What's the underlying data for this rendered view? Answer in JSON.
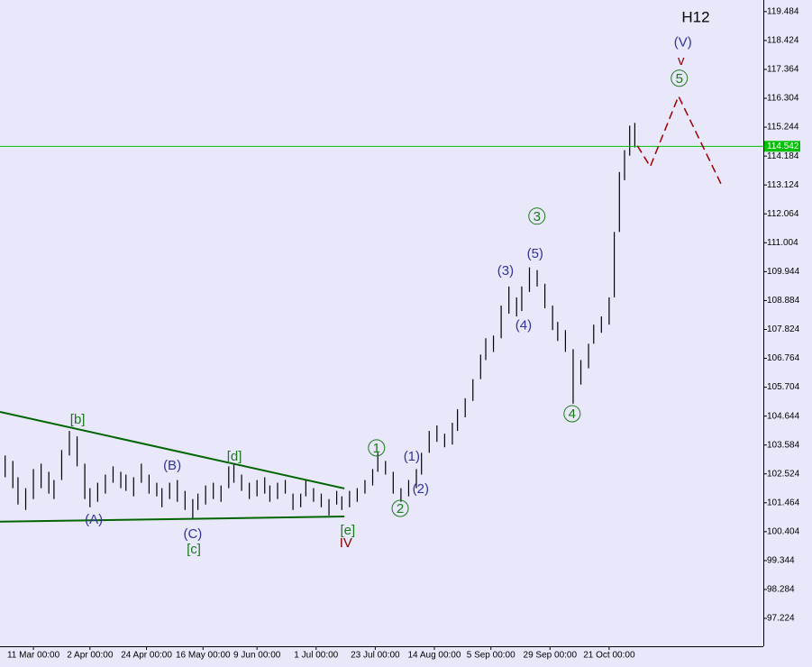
{
  "chart_data": {
    "type": "hlbar",
    "title": "H12",
    "xlim": [
      -13,
      284
    ],
    "ylim": [
      96.2,
      119.91
    ],
    "xticks": [
      {
        "value": 0,
        "label": "11 Mar 00:00"
      },
      {
        "value": 22,
        "label": "2 Apr 00:00"
      },
      {
        "value": 44,
        "label": "24 Apr 00:00"
      },
      {
        "value": 66,
        "label": "16 May 00:00"
      },
      {
        "value": 87,
        "label": "9 Jun 00:00"
      },
      {
        "value": 110,
        "label": "1 Jul 00:00"
      },
      {
        "value": 133,
        "label": "23 Jul 00:00"
      },
      {
        "value": 156,
        "label": "14 Aug 00:00"
      },
      {
        "value": 178,
        "label": "5 Sep 00:00"
      },
      {
        "value": 201,
        "label": "29 Sep 00:00"
      },
      {
        "value": 224,
        "label": "21 Oct 00:00"
      }
    ],
    "yticks": [
      97.224,
      98.284,
      99.344,
      100.404,
      101.464,
      102.524,
      103.584,
      104.644,
      105.704,
      106.764,
      107.824,
      108.884,
      109.944,
      111.004,
      112.064,
      113.124,
      114.184,
      115.244,
      116.304,
      117.364,
      118.424,
      119.484
    ],
    "bars": {
      "color": "#000000",
      "x": [
        -11,
        -8,
        -6,
        -3,
        0,
        3,
        6,
        8,
        11,
        14,
        17,
        20,
        22,
        25,
        28,
        31,
        34,
        36,
        39,
        42,
        45,
        48,
        50,
        53,
        56,
        59,
        62,
        64,
        67,
        70,
        73,
        76,
        78,
        81,
        84,
        87,
        90,
        92,
        95,
        98,
        101,
        104,
        106,
        109,
        112,
        115,
        118,
        120,
        123,
        126,
        129,
        132,
        134,
        137,
        140,
        143,
        146,
        149,
        151,
        154,
        157,
        160,
        163,
        165,
        168,
        171,
        174,
        176,
        179,
        182,
        185,
        188,
        190,
        193,
        196,
        199,
        202,
        204,
        207,
        210,
        213,
        216,
        218,
        221,
        224,
        226,
        228,
        230,
        232,
        234
      ],
      "low": [
        102.4,
        102.0,
        101.4,
        101.2,
        101.6,
        102.0,
        101.8,
        101.6,
        102.3,
        103.2,
        102.8,
        101.6,
        101.3,
        101.5,
        101.8,
        102.2,
        102.0,
        101.9,
        101.7,
        102.2,
        101.8,
        101.7,
        101.3,
        101.6,
        101.5,
        101.2,
        100.9,
        101.2,
        101.4,
        101.6,
        101.5,
        102.0,
        102.2,
        101.9,
        101.6,
        101.7,
        101.8,
        101.5,
        101.6,
        101.8,
        101.2,
        101.3,
        101.7,
        101.5,
        101.3,
        101.0,
        101.4,
        101.2,
        101.3,
        101.5,
        101.8,
        102.1,
        102.6,
        102.5,
        101.8,
        101.5,
        101.7,
        102.0,
        102.5,
        103.3,
        103.7,
        103.5,
        103.6,
        104.1,
        104.6,
        105.2,
        106.0,
        106.7,
        107.0,
        107.5,
        108.4,
        108.3,
        108.5,
        109.2,
        109.4,
        108.6,
        107.8,
        107.4,
        107.0,
        105.1,
        105.8,
        106.4,
        107.3,
        107.7,
        108.0,
        109.0,
        111.4,
        113.3,
        114.2,
        114.5
      ],
      "high": [
        103.2,
        103.0,
        102.4,
        102.0,
        102.7,
        102.9,
        102.6,
        102.3,
        103.4,
        104.1,
        103.9,
        102.9,
        102.0,
        102.2,
        102.5,
        102.8,
        102.6,
        102.5,
        102.4,
        102.9,
        102.5,
        102.2,
        102.0,
        102.2,
        102.3,
        101.9,
        101.6,
        101.8,
        102.1,
        102.2,
        102.1,
        102.8,
        102.9,
        102.5,
        102.2,
        102.3,
        102.4,
        102.1,
        102.2,
        102.3,
        101.8,
        101.8,
        102.3,
        102.0,
        101.8,
        101.6,
        101.9,
        101.7,
        101.9,
        102.0,
        102.3,
        102.7,
        103.3,
        103.0,
        102.6,
        102.0,
        102.3,
        102.7,
        103.3,
        104.1,
        104.3,
        104.0,
        104.4,
        104.9,
        105.3,
        106.0,
        106.9,
        107.5,
        107.6,
        108.7,
        109.4,
        109.0,
        109.4,
        110.1,
        110.0,
        109.5,
        108.7,
        108.1,
        107.8,
        107.1,
        106.7,
        107.3,
        108.0,
        108.3,
        109.0,
        111.4,
        113.6,
        114.4,
        115.3,
        115.4
      ]
    },
    "price_line": {
      "value": 114.542,
      "color": "#00c000"
    },
    "trendlines": [
      {
        "x": [
          -13,
          121
        ],
        "y": [
          104.8,
          101.99
        ],
        "color": "#006400"
      },
      {
        "x": [
          -13,
          121
        ],
        "y": [
          100.77,
          100.96
        ],
        "color": "#006400"
      }
    ],
    "projection": {
      "x": [
        235,
        240,
        251,
        268
      ],
      "y": [
        114.56,
        113.8,
        116.38,
        113.07
      ],
      "color": "#a00000"
    },
    "annotations": [
      {
        "text": "[b]",
        "x": 17.2,
        "y": 104.53,
        "color": "#1a7a1a"
      },
      {
        "text": "(A)",
        "x": 23.5,
        "y": 100.86,
        "color": "#333399"
      },
      {
        "text": "(B)",
        "x": 54.0,
        "y": 102.85,
        "color": "#333399"
      },
      {
        "text": "[d]",
        "x": 78.2,
        "y": 103.18,
        "color": "#1a7a1a"
      },
      {
        "text": "(C)",
        "x": 62.0,
        "y": 100.34,
        "color": "#333399"
      },
      {
        "text": "[c]",
        "x": 62.4,
        "y": 99.77,
        "color": "#1a7a1a"
      },
      {
        "text": "[e]",
        "x": 122.3,
        "y": 100.47,
        "color": "#1a7a1a"
      },
      {
        "text": "IV",
        "x": 121.6,
        "y": 100.0,
        "color": "#8b0000"
      },
      {
        "text": "1",
        "x": 133.5,
        "y": 103.48,
        "color": "#1a7a1a",
        "circled": true
      },
      {
        "text": "2",
        "x": 142.7,
        "y": 101.26,
        "color": "#1a7a1a",
        "circled": true
      },
      {
        "text": "(1)",
        "x": 147.2,
        "y": 103.18,
        "color": "#333399"
      },
      {
        "text": "(2)",
        "x": 150.7,
        "y": 101.99,
        "color": "#333399"
      },
      {
        "text": "(3)",
        "x": 183.7,
        "y": 109.99,
        "color": "#333399"
      },
      {
        "text": "(4)",
        "x": 190.7,
        "y": 107.98,
        "color": "#333399"
      },
      {
        "text": "(5)",
        "x": 195.2,
        "y": 110.62,
        "color": "#333399"
      },
      {
        "text": "3",
        "x": 195.9,
        "y": 111.98,
        "color": "#1a7a1a",
        "circled": true
      },
      {
        "text": "4",
        "x": 209.6,
        "y": 104.73,
        "color": "#1a7a1a",
        "circled": true
      },
      {
        "text": "5",
        "x": 251.3,
        "y": 117.04,
        "color": "#1a7a1a",
        "circled": true
      },
      {
        "text": "v",
        "x": 252.0,
        "y": 117.7,
        "color": "#8b0000"
      },
      {
        "text": "(V)",
        "x": 252.7,
        "y": 118.37,
        "color": "#333399"
      }
    ]
  }
}
